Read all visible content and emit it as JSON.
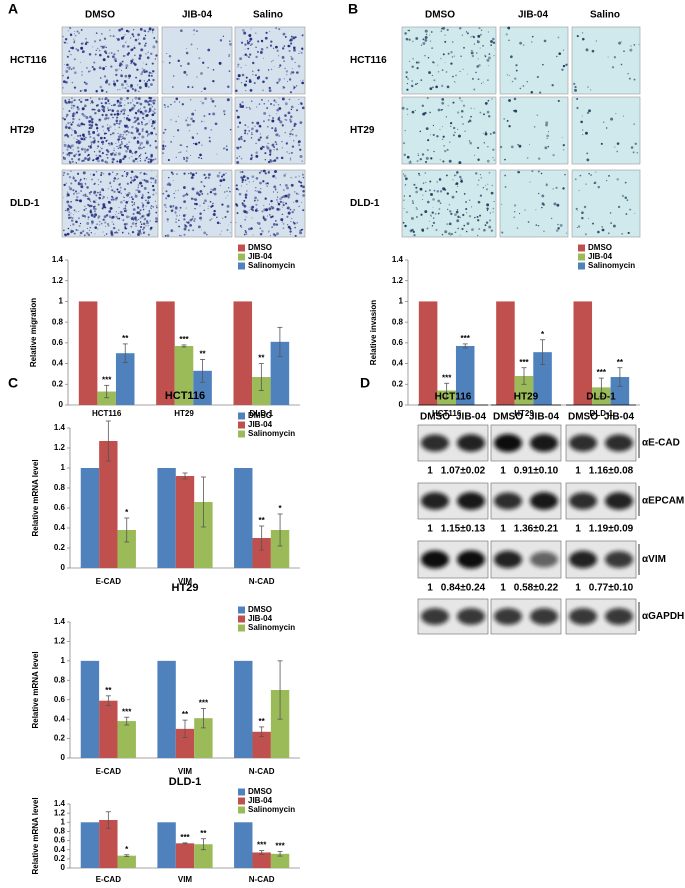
{
  "panel_labels": [
    "A",
    "B",
    "C",
    "D"
  ],
  "panel_a": {
    "columns": [
      "DMSO",
      "JIB-04",
      "Salino"
    ],
    "rows": [
      "HCT116",
      "HT29",
      "DLD-1"
    ]
  },
  "panel_b": {
    "columns": [
      "DMSO",
      "JIB-04",
      "Salino"
    ],
    "rows": [
      "HCT116",
      "HT29",
      "DLD-1"
    ]
  },
  "chart_data": [
    {
      "type": "bar",
      "ylabel": "Relative migration",
      "categories": [
        "HCT116",
        "HT29",
        "DLD-1"
      ],
      "series": [
        {
          "name": "DMSO",
          "color": "#c0504d",
          "values": [
            1,
            1,
            1
          ],
          "annotations": [
            null,
            null,
            null
          ]
        },
        {
          "name": "JIB-04",
          "color": "#9bbb59",
          "values": [
            0.13,
            0.57,
            0.27
          ],
          "errors": [
            0.06,
            0.01,
            0.13
          ],
          "annotations": [
            "***",
            "***",
            "**"
          ]
        },
        {
          "name": "Salinomycin",
          "color": "#4f81bd",
          "values": [
            0.5,
            0.33,
            0.61
          ],
          "errors": [
            0.09,
            0.11,
            0.14
          ],
          "annotations": [
            "**",
            "**",
            null
          ]
        }
      ],
      "ylim": [
        0,
        1.4
      ],
      "yticks": [
        0,
        0.2,
        0.4,
        0.6,
        0.8,
        1,
        1.2,
        1.4
      ],
      "legend": "upper right"
    },
    {
      "type": "bar",
      "ylabel": "Relative invasion",
      "categories": [
        "HCT116",
        "HT29",
        "DLD-1"
      ],
      "series": [
        {
          "name": "DMSO",
          "color": "#c0504d",
          "values": [
            1,
            1,
            1
          ],
          "annotations": [
            null,
            null,
            null
          ]
        },
        {
          "name": "JIB-04",
          "color": "#9bbb59",
          "values": [
            0.14,
            0.28,
            0.17
          ],
          "errors": [
            0.07,
            0.08,
            0.09
          ],
          "annotations": [
            "***",
            "***",
            "***"
          ]
        },
        {
          "name": "Salinomycin",
          "color": "#4f81bd",
          "values": [
            0.57,
            0.51,
            0.27
          ],
          "errors": [
            0.02,
            0.12,
            0.09
          ],
          "annotations": [
            "***",
            "*",
            "**"
          ]
        }
      ],
      "ylim": [
        0,
        1.4
      ],
      "yticks": [
        0,
        0.2,
        0.4,
        0.6,
        0.8,
        1,
        1.2,
        1.4
      ],
      "legend": "upper right"
    },
    {
      "type": "bar",
      "title": "HCT116",
      "ylabel": "Relative mRNA level",
      "categories": [
        "E-CAD",
        "VIM",
        "N-CAD"
      ],
      "series": [
        {
          "name": "DMSO",
          "color": "#4f81bd",
          "values": [
            1,
            1,
            1
          ],
          "annotations": [
            null,
            null,
            null
          ]
        },
        {
          "name": "JIB-04",
          "color": "#c0504d",
          "values": [
            1.27,
            0.92,
            0.3
          ],
          "errors": [
            0.2,
            0.03,
            0.12
          ],
          "annotations": [
            null,
            null,
            "**"
          ]
        },
        {
          "name": "Salinomycin",
          "color": "#9bbb59",
          "values": [
            0.38,
            0.66,
            0.38
          ],
          "errors": [
            0.12,
            0.25,
            0.16
          ],
          "annotations": [
            "*",
            null,
            "*"
          ]
        }
      ],
      "ylim": [
        0,
        1.4
      ],
      "yticks": [
        0,
        0.2,
        0.4,
        0.6,
        0.8,
        1,
        1.2,
        1.4
      ],
      "legend": "upper right"
    },
    {
      "type": "bar",
      "title": "HT29",
      "ylabel": "Relative mRNA level",
      "categories": [
        "E-CAD",
        "VIM",
        "N-CAD"
      ],
      "series": [
        {
          "name": "DMSO",
          "color": "#4f81bd",
          "values": [
            1,
            1,
            1
          ],
          "annotations": [
            null,
            null,
            null
          ]
        },
        {
          "name": "JIB-04",
          "color": "#c0504d",
          "values": [
            0.59,
            0.3,
            0.27
          ],
          "errors": [
            0.05,
            0.09,
            0.05
          ],
          "annotations": [
            "**",
            "**",
            "**"
          ]
        },
        {
          "name": "Salinomycin",
          "color": "#9bbb59",
          "values": [
            0.38,
            0.41,
            0.7
          ],
          "errors": [
            0.04,
            0.1,
            0.3
          ],
          "annotations": [
            "***",
            "***",
            null
          ]
        }
      ],
      "ylim": [
        0,
        1.4
      ],
      "yticks": [
        0,
        0.2,
        0.4,
        0.6,
        0.8,
        1,
        1.2,
        1.4
      ],
      "legend": "upper right"
    },
    {
      "type": "bar",
      "title": "DLD-1",
      "ylabel": "Relative mRNA level",
      "categories": [
        "E-CAD",
        "VIM",
        "N-CAD"
      ],
      "series": [
        {
          "name": "DMSO",
          "color": "#4f81bd",
          "values": [
            1,
            1,
            1
          ],
          "annotations": [
            null,
            null,
            null
          ]
        },
        {
          "name": "JIB-04",
          "color": "#c0504d",
          "values": [
            1.05,
            0.54,
            0.34
          ],
          "errors": [
            0.18,
            0.01,
            0.04
          ],
          "annotations": [
            null,
            "***",
            "***"
          ]
        },
        {
          "name": "Salinomycin",
          "color": "#9bbb59",
          "values": [
            0.27,
            0.52,
            0.31
          ],
          "errors": [
            0.02,
            0.12,
            0.05
          ],
          "annotations": [
            "*",
            "**",
            "***"
          ]
        }
      ],
      "ylim": [
        0,
        1.4
      ],
      "yticks": [
        0,
        0.2,
        0.4,
        0.6,
        0.8,
        1,
        1.2,
        1.4
      ],
      "legend": "upper right"
    }
  ],
  "blot": {
    "cell_lines": [
      "HCT116",
      "HT29",
      "DLD-1"
    ],
    "lanes": [
      "DMSO",
      "JIB-04"
    ],
    "proteins": [
      "αE-CAD",
      "αEPCAM",
      "αVIM",
      "αGAPDH"
    ],
    "quantification": [
      [
        "1",
        "1.07±0.02",
        "1",
        "0.91±0.10",
        "1",
        "1.16±0.08"
      ],
      [
        "1",
        "1.15±0.13",
        "1",
        "1.36±0.21",
        "1",
        "1.19±0.09"
      ],
      [
        "1",
        "0.84±0.24",
        "1",
        "0.58±0.22",
        "1",
        "0.77±0.10"
      ]
    ]
  }
}
